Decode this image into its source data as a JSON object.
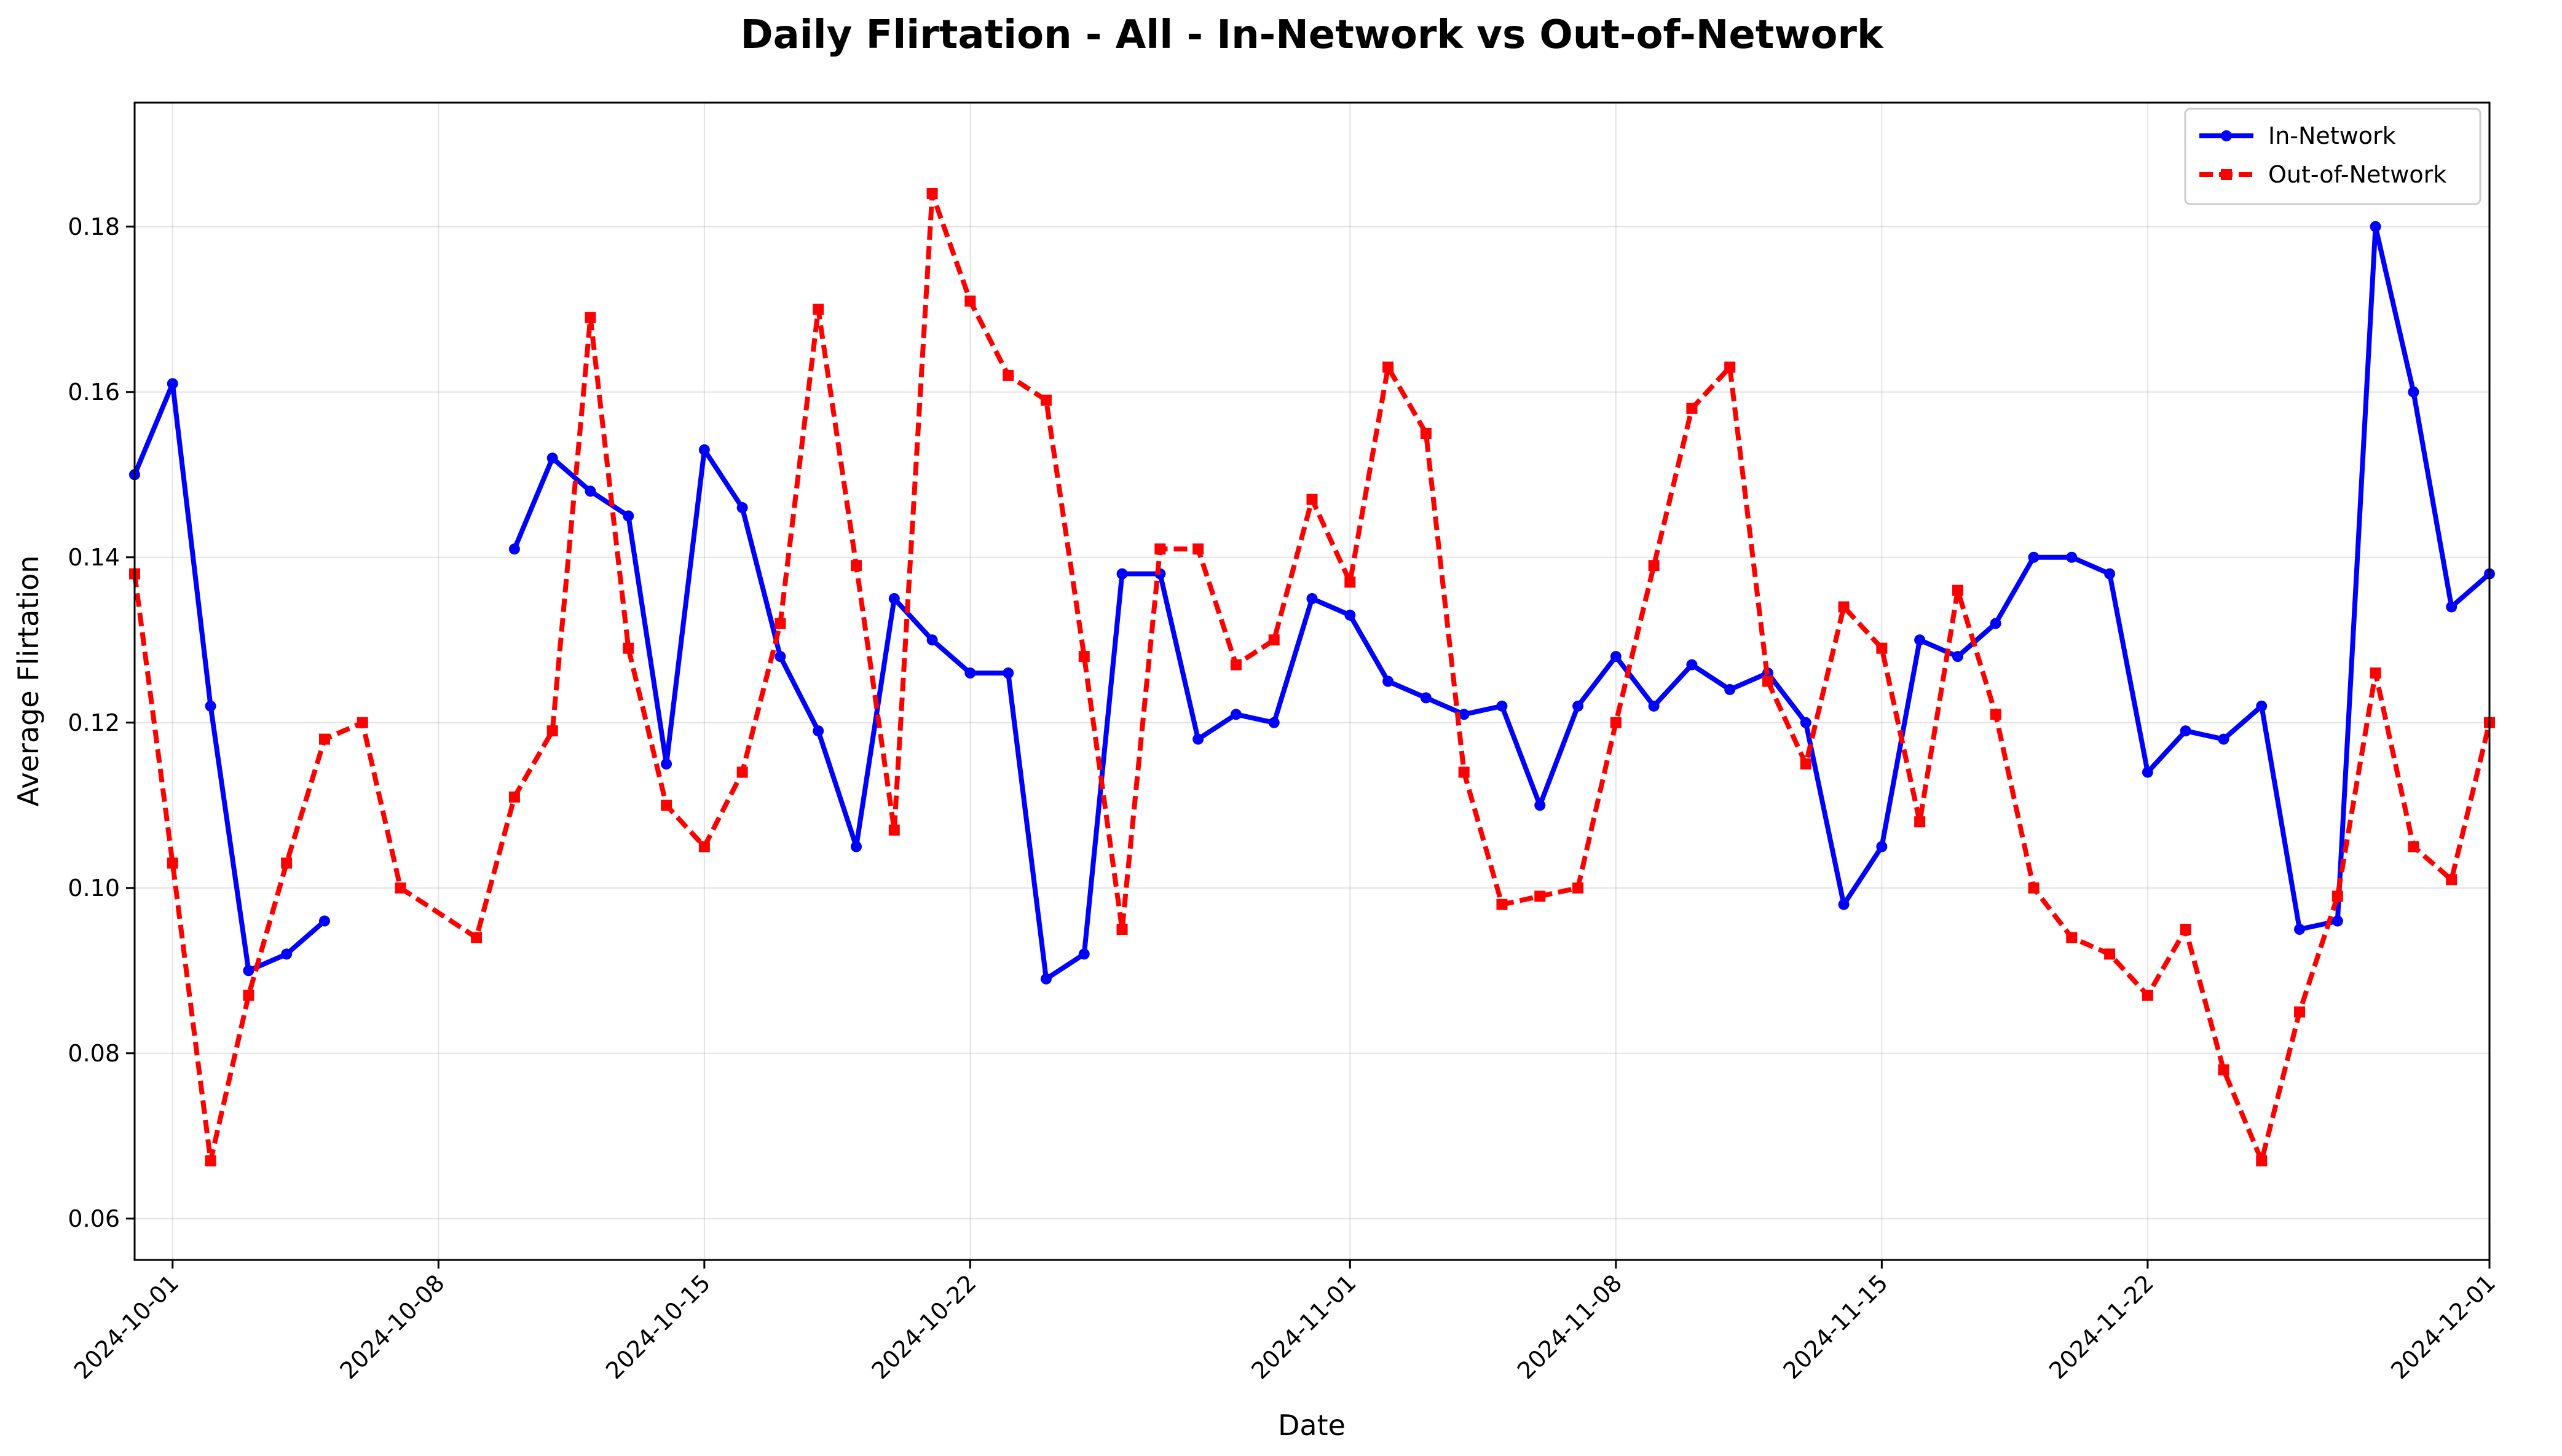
{
  "chart_data": {
    "type": "line",
    "title": "Daily Flirtation - All - In-Network vs Out-of-Network",
    "xlabel": "Date",
    "ylabel": "Average Flirtation",
    "x_start": "2024-09-30",
    "x_end": "2024-12-01",
    "ylim": [
      0.055,
      0.195
    ],
    "x_ticks": [
      "2024-10-01",
      "2024-10-08",
      "2024-10-15",
      "2024-10-22",
      "2024-11-01",
      "2024-11-08",
      "2024-11-15",
      "2024-11-22",
      "2024-12-01"
    ],
    "y_ticks": [
      "0.06",
      "0.08",
      "0.10",
      "0.12",
      "0.14",
      "0.16",
      "0.18"
    ],
    "grid": true,
    "legend_position": "top-right",
    "series": [
      {
        "name": "In-Network",
        "color": "#0000ff",
        "line_style": "solid",
        "marker": "circle",
        "points": [
          [
            "2024-09-30",
            0.15
          ],
          [
            "2024-10-01",
            0.161
          ],
          [
            "2024-10-02",
            0.122
          ],
          [
            "2024-10-03",
            0.09
          ],
          [
            "2024-10-04",
            0.092
          ],
          [
            "2024-10-05",
            0.096
          ],
          [
            "2024-10-06",
            null
          ],
          [
            "2024-10-07",
            null
          ],
          [
            "2024-10-08",
            null
          ],
          [
            "2024-10-09",
            null
          ],
          [
            "2024-10-10",
            0.141
          ],
          [
            "2024-10-11",
            0.152
          ],
          [
            "2024-10-12",
            0.148
          ],
          [
            "2024-10-13",
            0.145
          ],
          [
            "2024-10-14",
            0.115
          ],
          [
            "2024-10-15",
            0.153
          ],
          [
            "2024-10-16",
            0.146
          ],
          [
            "2024-10-17",
            0.128
          ],
          [
            "2024-10-18",
            0.119
          ],
          [
            "2024-10-19",
            0.105
          ],
          [
            "2024-10-20",
            0.135
          ],
          [
            "2024-10-21",
            0.13
          ],
          [
            "2024-10-22",
            0.126
          ],
          [
            "2024-10-23",
            0.126
          ],
          [
            "2024-10-24",
            0.089
          ],
          [
            "2024-10-25",
            0.092
          ],
          [
            "2024-10-26",
            0.138
          ],
          [
            "2024-10-27",
            0.138
          ],
          [
            "2024-10-28",
            0.118
          ],
          [
            "2024-10-29",
            0.121
          ],
          [
            "2024-10-30",
            0.12
          ],
          [
            "2024-10-31",
            0.135
          ],
          [
            "2024-11-01",
            0.133
          ],
          [
            "2024-11-02",
            0.125
          ],
          [
            "2024-11-03",
            0.123
          ],
          [
            "2024-11-04",
            0.121
          ],
          [
            "2024-11-05",
            0.122
          ],
          [
            "2024-11-06",
            0.11
          ],
          [
            "2024-11-07",
            0.122
          ],
          [
            "2024-11-08",
            0.128
          ],
          [
            "2024-11-09",
            0.122
          ],
          [
            "2024-11-10",
            0.127
          ],
          [
            "2024-11-11",
            0.124
          ],
          [
            "2024-11-12",
            0.126
          ],
          [
            "2024-11-13",
            0.12
          ],
          [
            "2024-11-14",
            0.098
          ],
          [
            "2024-11-15",
            0.105
          ],
          [
            "2024-11-16",
            0.13
          ],
          [
            "2024-11-17",
            0.128
          ],
          [
            "2024-11-18",
            0.132
          ],
          [
            "2024-11-19",
            0.14
          ],
          [
            "2024-11-20",
            0.14
          ],
          [
            "2024-11-21",
            0.138
          ],
          [
            "2024-11-22",
            0.114
          ],
          [
            "2024-11-23",
            0.119
          ],
          [
            "2024-11-24",
            0.118
          ],
          [
            "2024-11-25",
            0.122
          ],
          [
            "2024-11-26",
            0.095
          ],
          [
            "2024-11-27",
            0.096
          ],
          [
            "2024-11-28",
            0.18
          ],
          [
            "2024-11-29",
            0.16
          ],
          [
            "2024-11-30",
            0.134
          ],
          [
            "2024-12-01",
            0.138
          ]
        ]
      },
      {
        "name": "Out-of-Network",
        "color": "#ff0000",
        "line_style": "dashed",
        "marker": "square",
        "points": [
          [
            "2024-09-30",
            0.138
          ],
          [
            "2024-10-01",
            0.103
          ],
          [
            "2024-10-02",
            0.067
          ],
          [
            "2024-10-03",
            0.087
          ],
          [
            "2024-10-04",
            0.103
          ],
          [
            "2024-10-05",
            0.118
          ],
          [
            "2024-10-06",
            0.12
          ],
          [
            "2024-10-07",
            0.1
          ],
          [
            "2024-10-09",
            0.094
          ],
          [
            "2024-10-10",
            0.111
          ],
          [
            "2024-10-11",
            0.119
          ],
          [
            "2024-10-12",
            0.169
          ],
          [
            "2024-10-13",
            0.129
          ],
          [
            "2024-10-14",
            0.11
          ],
          [
            "2024-10-15",
            0.105
          ],
          [
            "2024-10-16",
            0.114
          ],
          [
            "2024-10-17",
            0.132
          ],
          [
            "2024-10-18",
            0.17
          ],
          [
            "2024-10-19",
            0.139
          ],
          [
            "2024-10-20",
            0.107
          ],
          [
            "2024-10-21",
            0.184
          ],
          [
            "2024-10-22",
            0.171
          ],
          [
            "2024-10-23",
            0.162
          ],
          [
            "2024-10-24",
            0.159
          ],
          [
            "2024-10-25",
            0.128
          ],
          [
            "2024-10-26",
            0.095
          ],
          [
            "2024-10-27",
            0.141
          ],
          [
            "2024-10-28",
            0.141
          ],
          [
            "2024-10-29",
            0.127
          ],
          [
            "2024-10-30",
            0.13
          ],
          [
            "2024-10-31",
            0.147
          ],
          [
            "2024-11-01",
            0.137
          ],
          [
            "2024-11-02",
            0.163
          ],
          [
            "2024-11-03",
            0.155
          ],
          [
            "2024-11-04",
            0.114
          ],
          [
            "2024-11-05",
            0.098
          ],
          [
            "2024-11-06",
            0.099
          ],
          [
            "2024-11-07",
            0.1
          ],
          [
            "2024-11-08",
            0.12
          ],
          [
            "2024-11-09",
            0.139
          ],
          [
            "2024-11-10",
            0.158
          ],
          [
            "2024-11-11",
            0.163
          ],
          [
            "2024-11-12",
            0.125
          ],
          [
            "2024-11-13",
            0.115
          ],
          [
            "2024-11-14",
            0.134
          ],
          [
            "2024-11-15",
            0.129
          ],
          [
            "2024-11-16",
            0.108
          ],
          [
            "2024-11-17",
            0.136
          ],
          [
            "2024-11-18",
            0.121
          ],
          [
            "2024-11-19",
            0.1
          ],
          [
            "2024-11-20",
            0.094
          ],
          [
            "2024-11-21",
            0.092
          ],
          [
            "2024-11-22",
            0.087
          ],
          [
            "2024-11-23",
            0.095
          ],
          [
            "2024-11-24",
            0.078
          ],
          [
            "2024-11-25",
            0.067
          ],
          [
            "2024-11-26",
            0.085
          ],
          [
            "2024-11-27",
            0.099
          ],
          [
            "2024-11-28",
            0.126
          ],
          [
            "2024-11-29",
            0.105
          ],
          [
            "2024-11-30",
            0.101
          ],
          [
            "2024-12-01",
            0.12
          ]
        ]
      }
    ]
  }
}
